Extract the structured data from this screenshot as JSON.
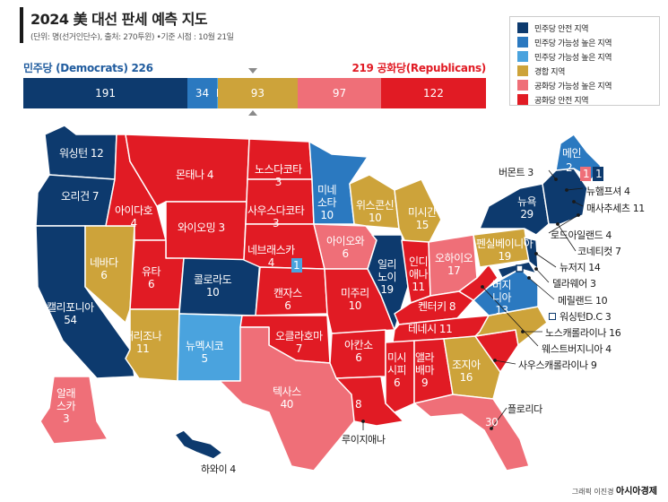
{
  "header": {
    "title": "2024 美 대선 판세 예측 지도",
    "subtitle": "(단위: 명(선거인단수), 출처: 270투윈) •기준 시점 : 10월 21일"
  },
  "legend": [
    {
      "label": "민주당 안전 지역",
      "color": "#0d3a6e"
    },
    {
      "label": "민주당 가능성 높은 지역",
      "color": "#2b79c0"
    },
    {
      "label": "민주당 가능성 높은 지역",
      "color": "#4aa3de"
    },
    {
      "label": "경합 지역",
      "color": "#cda33a"
    },
    {
      "label": "공화당 가능성 높은 지역",
      "color": "#ef6f78"
    },
    {
      "label": "공화당 안전 지역",
      "color": "#e11b24"
    }
  ],
  "tally": {
    "dem_label": "민주당 (Democrats) 226",
    "rep_label": "219  공화당(Republicans)",
    "segments": [
      {
        "value": 191,
        "text": "191",
        "color": "#0d3a6e"
      },
      {
        "value": 34,
        "text": "34",
        "color": "#2b79c0"
      },
      {
        "value": 1,
        "text": "1",
        "color": "#4aa3de"
      },
      {
        "value": 93,
        "text": "93",
        "color": "#cda33a"
      },
      {
        "value": 97,
        "text": "97",
        "color": "#ef6f78"
      },
      {
        "value": 122,
        "text": "122",
        "color": "#e11b24"
      }
    ]
  },
  "colors": {
    "dem_safe": "#0d3a6e",
    "dem_likely": "#2b79c0",
    "dem_lean": "#4aa3de",
    "toss": "#cda33a",
    "rep_likely": "#ef6f78",
    "rep_safe": "#e11b24"
  },
  "states": {
    "wa": "워싱턴 12",
    "or": "오리건 7",
    "ca": "캘리포니아\n54",
    "nv": "네바다\n6",
    "id": "아이다호\n4",
    "mt": "몬태나 4",
    "wy": "와이오밍 3",
    "ut": "유타\n6",
    "az": "애리조나\n11",
    "co": "콜로라도\n10",
    "nm": "뉴멕시코\n5",
    "nd": "노스다코타\n3",
    "sd": "사우스다코타\n3",
    "ne": "네브래스카\n4",
    "ne_dist": "1",
    "ks": "캔자스\n6",
    "ok": "오클라호마\n7",
    "tx": "텍사스\n40",
    "mn": "미네\n소타\n10",
    "ia": "아이오와\n6",
    "mo": "미주리\n10",
    "ar": "아칸소\n6",
    "la": "8",
    "wi": "위스콘신\n10",
    "il": "일리\n노이\n19",
    "mi": "미시간\n15",
    "in": "인디\n애나\n11",
    "oh": "오하이오\n17",
    "ky": "켄터키 8",
    "tn": "테네시 11",
    "ms": "미시\n시피\n6",
    "al": "앨라\n배마\n9",
    "ga": "조지아\n16",
    "fl": "30",
    "pa": "펜실베이니아\n19",
    "ny": "뉴욕\n29",
    "va": "버지\n니아\n13",
    "me": "메인",
    "me_num": "2",
    "me_d1": "1",
    "me_d2": "1",
    "ak": "알래\n스카\n3",
    "hi_num": "하와이 4"
  },
  "callouts": {
    "vt": "버몬트 3",
    "nh": "뉴햄프셔 4",
    "ma": "매사추세츠 11",
    "ri": "로드아일랜드 4",
    "ct": "코네티컷 7",
    "nj": "뉴저지 14",
    "de": "델라웨어 3",
    "md": "메릴랜드 10",
    "dc": "워싱턴D.C 3",
    "nc": "노스캐롤라이나 16",
    "wv": "웨스트버지니아 4",
    "sc": "사우스캐롤라이나 9",
    "fl": "플로리다",
    "la": "루이지애나"
  },
  "credit": {
    "prefix": "그래픽 이진경",
    "brand": "아시아경제"
  }
}
